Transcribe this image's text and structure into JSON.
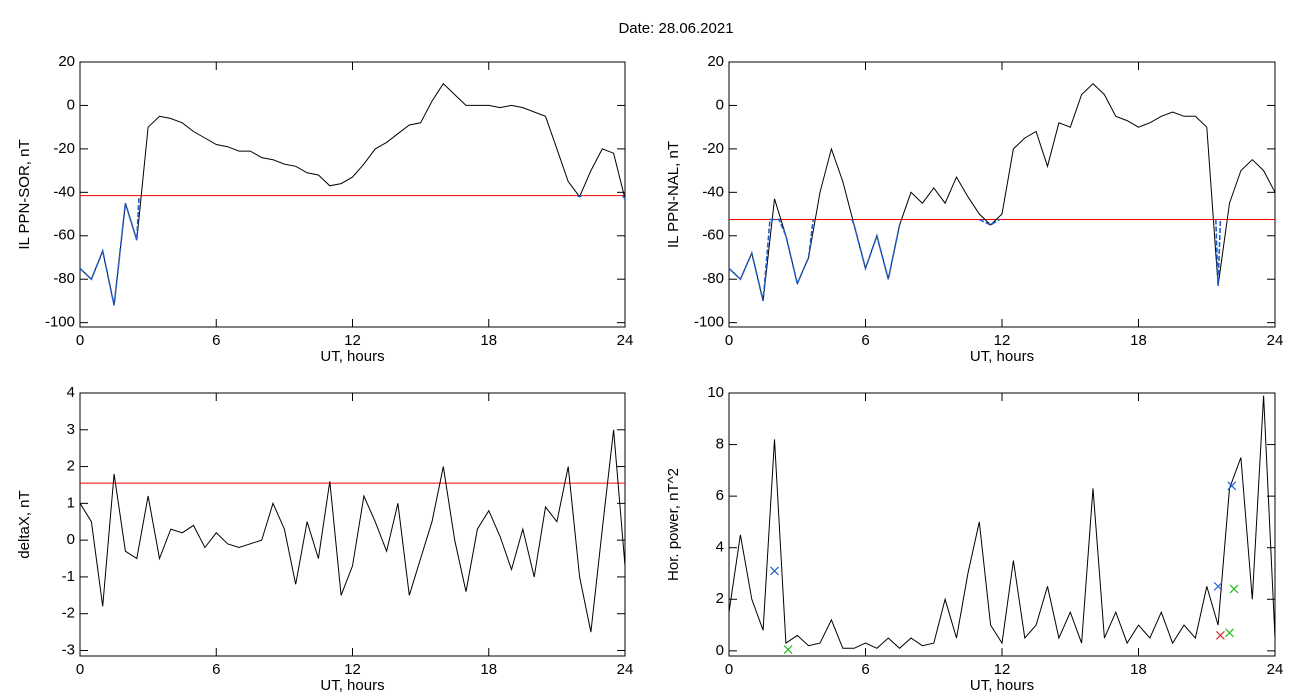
{
  "title": "Date:  28.06.2021",
  "chart_data": [
    {
      "type": "line",
      "ylabel": "IL PPN-SOR, nT",
      "xlabel": "UT, hours",
      "xlim": [
        0,
        24
      ],
      "xticks": [
        0,
        6,
        12,
        18,
        24
      ],
      "ylim": [
        -102,
        20
      ],
      "yticks": [
        20,
        0,
        -20,
        -40,
        -60,
        -80,
        -100
      ],
      "x": [
        0,
        0.5,
        1,
        1.5,
        2,
        2.5,
        3,
        3.5,
        4,
        4.5,
        5,
        5.5,
        6,
        6.5,
        7,
        7.5,
        8,
        8.5,
        9,
        9.5,
        10,
        10.5,
        11,
        11.5,
        12,
        12.5,
        13,
        13.5,
        14,
        14.5,
        15,
        15.5,
        16,
        16.5,
        17,
        17.5,
        18,
        18.5,
        19,
        19.5,
        20,
        20.5,
        21,
        21.5,
        22,
        22.5,
        23,
        23.5,
        24
      ],
      "series": [
        {
          "color": "#000000",
          "values": [
            -75,
            -80,
            -67,
            -92,
            -45,
            -62,
            -10,
            -5,
            -6,
            -8,
            -12,
            -15,
            -18,
            -19,
            -21,
            -21,
            -24,
            -25,
            -27,
            -28,
            -31,
            -32,
            -37,
            -36,
            -33,
            -27,
            -20,
            -17,
            -13,
            -9,
            -8,
            2,
            10,
            5,
            0,
            0,
            0,
            -1,
            0,
            -1,
            -3,
            -5,
            -20,
            -35,
            -42,
            -30,
            -20,
            -22,
            -43
          ]
        },
        {
          "color": "#1f5fd0",
          "x": [
            0,
            0.5,
            1,
            1.5,
            2,
            2.5,
            2.6,
            12,
            21.9,
            22,
            22.1,
            23,
            23.9,
            24
          ],
          "values": [
            -75,
            -80,
            -67,
            -92,
            -45,
            -62,
            -42,
            null,
            -41.5,
            -42,
            -41.5,
            null,
            -41.5,
            -43
          ]
        }
      ],
      "hlines": [
        {
          "value": -41.5,
          "color": "#ff0000"
        }
      ]
    },
    {
      "type": "line",
      "ylabel": "IL PPN-NAL, nT",
      "xlabel": "UT, hours",
      "xlim": [
        0,
        24
      ],
      "xticks": [
        0,
        6,
        12,
        18,
        24
      ],
      "ylim": [
        -102,
        20
      ],
      "yticks": [
        20,
        0,
        -20,
        -40,
        -60,
        -80,
        -100
      ],
      "x": [
        0,
        0.5,
        1,
        1.5,
        2,
        2.5,
        3,
        3.5,
        4,
        4.5,
        5,
        5.5,
        6,
        6.5,
        7,
        7.5,
        8,
        8.5,
        9,
        9.5,
        10,
        10.5,
        11,
        11.5,
        12,
        12.5,
        13,
        13.5,
        14,
        14.5,
        15,
        15.5,
        16,
        16.5,
        17,
        17.5,
        18,
        18.5,
        19,
        19.5,
        20,
        20.5,
        21,
        21.5,
        22,
        22.5,
        23,
        23.5,
        24
      ],
      "series": [
        {
          "color": "#000000",
          "values": [
            -75,
            -80,
            -68,
            -90,
            -43,
            -60,
            -82,
            -70,
            -40,
            -20,
            -35,
            -55,
            -75,
            -60,
            -80,
            -55,
            -40,
            -45,
            -38,
            -45,
            -33,
            -42,
            -50,
            -55,
            -50,
            -20,
            -15,
            -12,
            -28,
            -8,
            -10,
            5,
            10,
            5,
            -5,
            -7,
            -10,
            -8,
            -5,
            -3,
            -5,
            -5,
            -10,
            -83,
            -45,
            -30,
            -25,
            -30,
            -40
          ]
        },
        {
          "color": "#1f5fd0",
          "x": [
            0,
            0.5,
            1,
            1.5,
            1.8,
            2.2,
            2.5,
            3,
            3.5,
            3.7,
            4,
            5.4,
            5.5,
            6,
            6.5,
            7,
            7.5,
            8,
            11,
            11.5,
            11.9,
            12,
            21.4,
            21.5,
            21.6
          ],
          "values": [
            -75,
            -80,
            -68,
            -90,
            -52.5,
            -52.5,
            -60,
            -82,
            -70,
            -52.5,
            null,
            -52.5,
            -55,
            -75,
            -60,
            -80,
            -55,
            null,
            -52.5,
            -55,
            -52.5,
            null,
            -52.5,
            -83,
            -52.5
          ]
        }
      ],
      "hlines": [
        {
          "value": -52.5,
          "color": "#ff0000"
        }
      ]
    },
    {
      "type": "line",
      "ylabel": "deltaX, nT",
      "xlabel": "UT, hours",
      "xlim": [
        0,
        24
      ],
      "xticks": [
        0,
        6,
        12,
        18,
        24
      ],
      "ylim": [
        -3.15,
        4
      ],
      "yticks": [
        4,
        3,
        2,
        1,
        0,
        -1,
        -2,
        -3
      ],
      "x": [
        0,
        0.5,
        1,
        1.5,
        2,
        2.5,
        3,
        3.5,
        4,
        4.5,
        5,
        5.5,
        6,
        6.5,
        7,
        7.5,
        8,
        8.5,
        9,
        9.5,
        10,
        10.5,
        11,
        11.5,
        12,
        12.5,
        13,
        13.5,
        14,
        14.5,
        15,
        15.5,
        16,
        16.5,
        17,
        17.5,
        18,
        18.5,
        19,
        19.5,
        20,
        20.5,
        21,
        21.5,
        22,
        22.5,
        23,
        23.5,
        24
      ],
      "series": [
        {
          "color": "#000000",
          "values": [
            1.0,
            0.5,
            -1.8,
            1.8,
            -0.3,
            -0.5,
            1.2,
            -0.5,
            0.3,
            0.2,
            0.4,
            -0.2,
            0.2,
            -0.1,
            -0.2,
            -0.1,
            0,
            1.0,
            0.3,
            -1.2,
            0.5,
            -0.5,
            1.6,
            -1.5,
            -0.7,
            1.2,
            0.5,
            -0.3,
            1.0,
            -1.5,
            -0.5,
            0.5,
            2.0,
            0,
            -1.4,
            0.3,
            0.8,
            0.1,
            -0.8,
            0.3,
            -1.0,
            0.9,
            0.5,
            2.0,
            -1.0,
            -2.5,
            0.3,
            3.0,
            -0.7
          ]
        }
      ],
      "hlines": [
        {
          "value": 1.55,
          "color": "#ff0000"
        }
      ]
    },
    {
      "type": "line",
      "ylabel": "Hor. power, nT^2",
      "xlabel": "UT, hours",
      "xlim": [
        0,
        24
      ],
      "xticks": [
        0,
        6,
        12,
        18,
        24
      ],
      "ylim": [
        -0.2,
        10
      ],
      "yticks": [
        10,
        8,
        6,
        4,
        2,
        0
      ],
      "x": [
        0,
        0.5,
        1,
        1.5,
        2,
        2.5,
        3,
        3.5,
        4,
        4.5,
        5,
        5.5,
        6,
        6.5,
        7,
        7.5,
        8,
        8.5,
        9,
        9.5,
        10,
        10.5,
        11,
        11.5,
        12,
        12.5,
        13,
        13.5,
        14,
        14.5,
        15,
        15.5,
        16,
        16.5,
        17,
        17.5,
        18,
        18.5,
        19,
        19.5,
        20,
        20.5,
        21,
        21.5,
        22,
        22.5,
        23,
        23.5,
        24
      ],
      "series": [
        {
          "color": "#000000",
          "values": [
            1.5,
            4.5,
            2,
            0.8,
            8.2,
            0.3,
            0.6,
            0.2,
            0.3,
            1.2,
            0.1,
            0.1,
            0.3,
            0.1,
            0.5,
            0.1,
            0.5,
            0.2,
            0.3,
            2.0,
            0.5,
            3.0,
            5.0,
            1.0,
            0.3,
            3.5,
            0.5,
            1.0,
            2.5,
            0.5,
            1.5,
            0.3,
            6.3,
            0.5,
            1.5,
            0.3,
            1.0,
            0.5,
            1.5,
            0.3,
            1.0,
            0.5,
            2.5,
            1.0,
            6.3,
            7.5,
            2.0,
            9.9,
            0.5
          ]
        },
        {
          "color": "#1f5fd0",
          "marker": "x",
          "x": [
            2,
            21.5,
            22.1
          ],
          "values": [
            3.1,
            2.5,
            6.4
          ]
        },
        {
          "color": "#22bb22",
          "marker": "x",
          "x": [
            2.6,
            22,
            22.2
          ],
          "values": [
            0.05,
            0.7,
            2.4
          ]
        },
        {
          "color": "#dd2222",
          "marker": "x",
          "x": [
            21.6
          ],
          "values": [
            0.6
          ]
        }
      ]
    }
  ]
}
